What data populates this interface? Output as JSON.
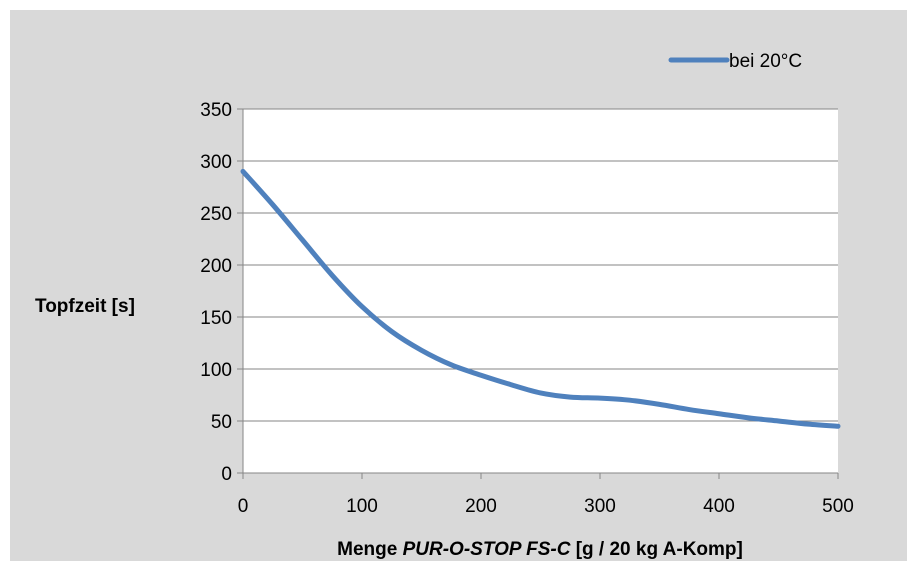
{
  "chart_data": {
    "type": "line",
    "x": [
      0,
      25,
      50,
      75,
      100,
      125,
      150,
      175,
      200,
      225,
      250,
      275,
      300,
      325,
      350,
      375,
      400,
      425,
      450,
      475,
      500
    ],
    "series": [
      {
        "name": "bei 20°C",
        "values": [
          290,
          258,
          224,
          190,
          160,
          136,
          118,
          104,
          94,
          85,
          77,
          73,
          72,
          70,
          66,
          61,
          57,
          53,
          50,
          47,
          45
        ]
      }
    ],
    "xlabel": {
      "prefix": "Menge ",
      "product": "PUR-O-STOP FS-C",
      "suffix": " [g / 20 kg A-Komp]"
    },
    "ylabel": "Topfzeit [s]",
    "xlim": [
      0,
      500
    ],
    "ylim": [
      0,
      350
    ],
    "xticks": [
      "0",
      "100",
      "200",
      "300",
      "400",
      "500"
    ],
    "yticks": [
      "0",
      "50",
      "100",
      "150",
      "200",
      "250",
      "300",
      "350"
    ],
    "grid": "horizontal",
    "legend_position": "top-right",
    "colors": {
      "line": "#4f81bd",
      "grid": "#868686",
      "background": "#d9d9d9",
      "plot": "#ffffff"
    }
  }
}
